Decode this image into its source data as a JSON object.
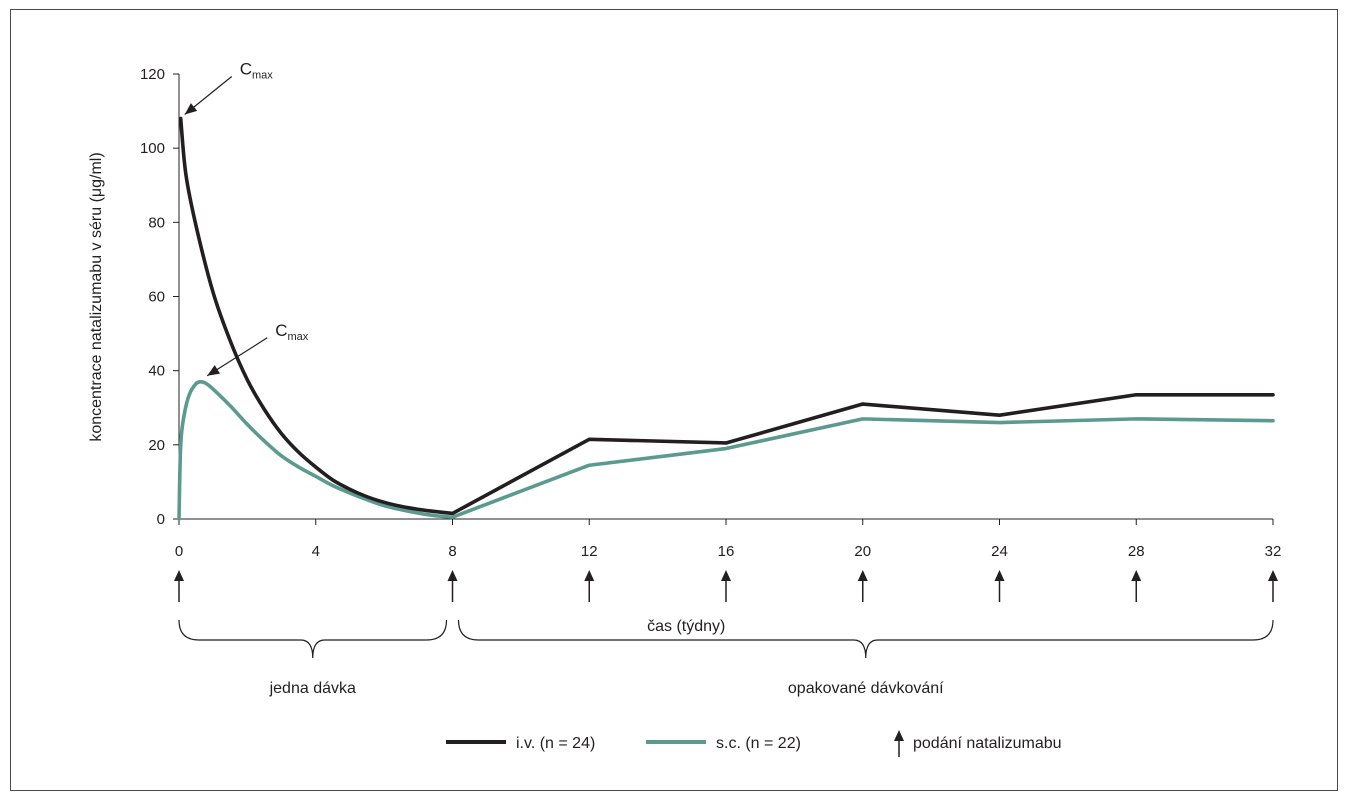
{
  "chart_data": {
    "type": "line",
    "xlabel": "čas (týdny)",
    "ylabel": "koncentrace natalizumabu v séru (μg/ml)",
    "xlim": [
      0,
      32
    ],
    "ylim": [
      0,
      120
    ],
    "x_ticks": [
      0,
      4,
      8,
      12,
      16,
      20,
      24,
      28,
      32
    ],
    "y_ticks": [
      0,
      20,
      40,
      60,
      80,
      100,
      120
    ],
    "grid": false,
    "legend_position": "bottom",
    "series": [
      {
        "name": "i.v. (n = 24)",
        "color": "#231f20",
        "x": [
          0.05,
          0.2,
          0.5,
          1.0,
          1.5,
          2.0,
          2.5,
          3.0,
          3.5,
          4.0,
          4.5,
          5.0,
          5.5,
          6.0,
          6.5,
          7.0,
          7.5,
          8.0,
          12.0,
          16.0,
          20.0,
          24.0,
          28.0,
          32.0
        ],
        "y": [
          108,
          93,
          79,
          61,
          48,
          37.5,
          29.5,
          23,
          18,
          14,
          10.5,
          8,
          6,
          4.5,
          3.4,
          2.6,
          2.0,
          1.5,
          21.5,
          20.5,
          31,
          28,
          33.5,
          33.5
        ]
      },
      {
        "name": "s.c. (n = 22)",
        "color": "#5b9a8f",
        "x": [
          0.0,
          0.05,
          0.15,
          0.3,
          0.5,
          0.65,
          0.8,
          1.0,
          1.5,
          2.0,
          2.5,
          3.0,
          3.5,
          4.0,
          4.5,
          5.0,
          5.5,
          6.0,
          6.5,
          7.0,
          7.5,
          8.0,
          12.0,
          16.0,
          20.0,
          24.0,
          28.0,
          32.0
        ],
        "y": [
          0,
          20,
          28,
          33.5,
          36.5,
          37,
          36.5,
          35,
          30.5,
          25.5,
          21,
          17,
          14,
          11.5,
          9,
          7,
          5.2,
          3.6,
          2.5,
          1.6,
          0.9,
          0.5,
          14.5,
          19,
          27,
          26,
          27,
          26.5
        ]
      }
    ],
    "annotations": [
      {
        "text": "C",
        "subscript": "max",
        "series": "i.v. (n = 24)"
      },
      {
        "text": "C",
        "subscript": "max",
        "series": "s.c. (n = 22)"
      }
    ],
    "dose_weeks": [
      0,
      8,
      12,
      16,
      20,
      24,
      28,
      32
    ],
    "phases": [
      {
        "label": "jedna dávka",
        "from": 0,
        "to": 8
      },
      {
        "label": "opakované dávkování",
        "from": 8,
        "to": 32
      }
    ],
    "legend_marker_label": "podání natalizumabu"
  }
}
